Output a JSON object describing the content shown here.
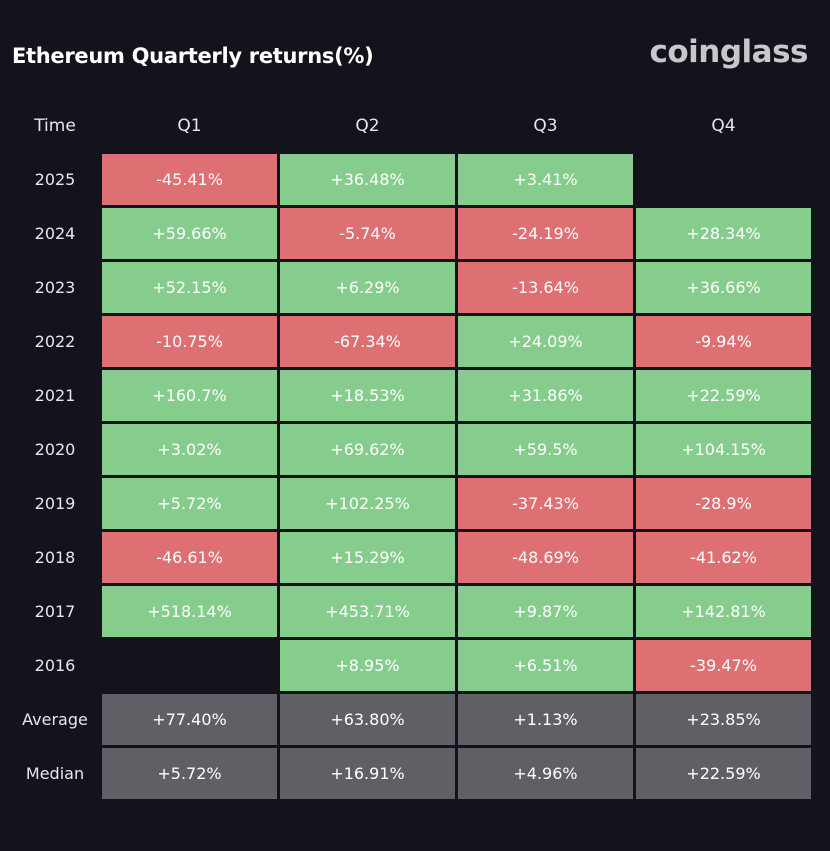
{
  "title": "Ethereum Quarterly returns(%)",
  "brand": "coinglass",
  "colors": {
    "positive": "#86cc8d",
    "negative": "#de7073",
    "stat": "#5f6066",
    "background": "#13141b"
  },
  "chart_data": {
    "type": "table",
    "title": "Ethereum Quarterly returns(%)",
    "columns": [
      "Time",
      "Q1",
      "Q2",
      "Q3",
      "Q4"
    ],
    "rows": [
      {
        "label": "2025",
        "values": [
          "-45.41%",
          "+36.48%",
          "+3.41%",
          ""
        ]
      },
      {
        "label": "2024",
        "values": [
          "+59.66%",
          "-5.74%",
          "-24.19%",
          "+28.34%"
        ]
      },
      {
        "label": "2023",
        "values": [
          "+52.15%",
          "+6.29%",
          "-13.64%",
          "+36.66%"
        ]
      },
      {
        "label": "2022",
        "values": [
          "-10.75%",
          "-67.34%",
          "+24.09%",
          "-9.94%"
        ]
      },
      {
        "label": "2021",
        "values": [
          "+160.7%",
          "+18.53%",
          "+31.86%",
          "+22.59%"
        ]
      },
      {
        "label": "2020",
        "values": [
          "+3.02%",
          "+69.62%",
          "+59.5%",
          "+104.15%"
        ]
      },
      {
        "label": "2019",
        "values": [
          "+5.72%",
          "+102.25%",
          "-37.43%",
          "-28.9%"
        ]
      },
      {
        "label": "2018",
        "values": [
          "-46.61%",
          "+15.29%",
          "-48.69%",
          "-41.62%"
        ]
      },
      {
        "label": "2017",
        "values": [
          "+518.14%",
          "+453.71%",
          "+9.87%",
          "+142.81%"
        ]
      },
      {
        "label": "2016",
        "values": [
          "",
          "+8.95%",
          "+6.51%",
          "-39.47%"
        ]
      }
    ],
    "summary_rows": [
      {
        "label": "Average",
        "values": [
          "+77.40%",
          "+63.80%",
          "+1.13%",
          "+23.85%"
        ]
      },
      {
        "label": "Median",
        "values": [
          "+5.72%",
          "+16.91%",
          "+4.96%",
          "+22.59%"
        ]
      }
    ]
  }
}
